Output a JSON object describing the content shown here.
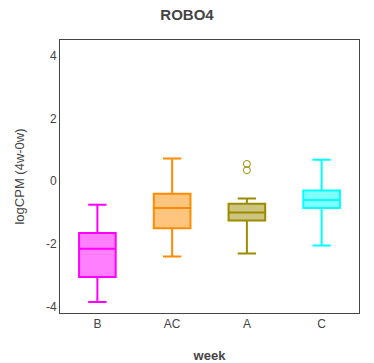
{
  "chart_data": {
    "type": "box",
    "title": "ROBO4",
    "xlabel": "week",
    "ylabel": "logCPM (4w-0w)",
    "categories": [
      "B",
      "AC",
      "A",
      "C"
    ],
    "colors": [
      "#FF00FF",
      "#FF8C00",
      "#9B8B00",
      "#00FFFF"
    ],
    "boxes": [
      {
        "q1": -3.05,
        "median": -2.15,
        "q3": -1.65,
        "whislo": -3.85,
        "whishi": -0.75,
        "fliers": []
      },
      {
        "q1": -1.5,
        "median": -0.85,
        "q3": -0.4,
        "whislo": -2.4,
        "whishi": 0.72,
        "fliers": []
      },
      {
        "q1": -1.25,
        "median": -1.0,
        "q3": -0.72,
        "whislo": -2.3,
        "whishi": -0.55,
        "fliers": [
          0.55,
          0.35
        ]
      },
      {
        "q1": -0.85,
        "median": -0.6,
        "q3": -0.3,
        "whislo": -2.05,
        "whishi": 0.68,
        "fliers": []
      }
    ],
    "ylim": [
      -4.2,
      4.5
    ],
    "yticks": [
      -4,
      -2,
      0,
      2,
      4
    ],
    "grid": false
  }
}
